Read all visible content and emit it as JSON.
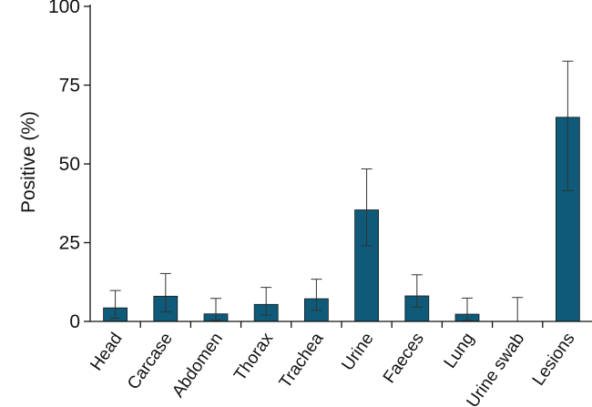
{
  "chart_data": {
    "type": "bar",
    "title": "",
    "xlabel": "",
    "ylabel": "Positive (%)",
    "ylim": [
      0,
      100
    ],
    "yticks": [
      "0",
      "25",
      "50",
      "75",
      "100"
    ],
    "grid": false,
    "legend": "none",
    "bar_color": "#0e5a78",
    "categories": [
      "Head",
      "Carcase",
      "Abdomen",
      "Thorax",
      "Trachea",
      "Urine",
      "Faeces",
      "Lung",
      "Urine swab",
      "Lesions"
    ],
    "values": [
      4.3,
      8.0,
      2.4,
      5.4,
      7.2,
      35.4,
      8.1,
      2.3,
      0,
      64.8
    ],
    "error_low": [
      1.0,
      3.0,
      0.4,
      2.0,
      3.5,
      24.0,
      4.5,
      0.3,
      0,
      41.5
    ],
    "error_high": [
      9.8,
      15.2,
      7.3,
      10.8,
      13.4,
      48.4,
      14.8,
      7.4,
      7.6,
      82.6
    ]
  }
}
